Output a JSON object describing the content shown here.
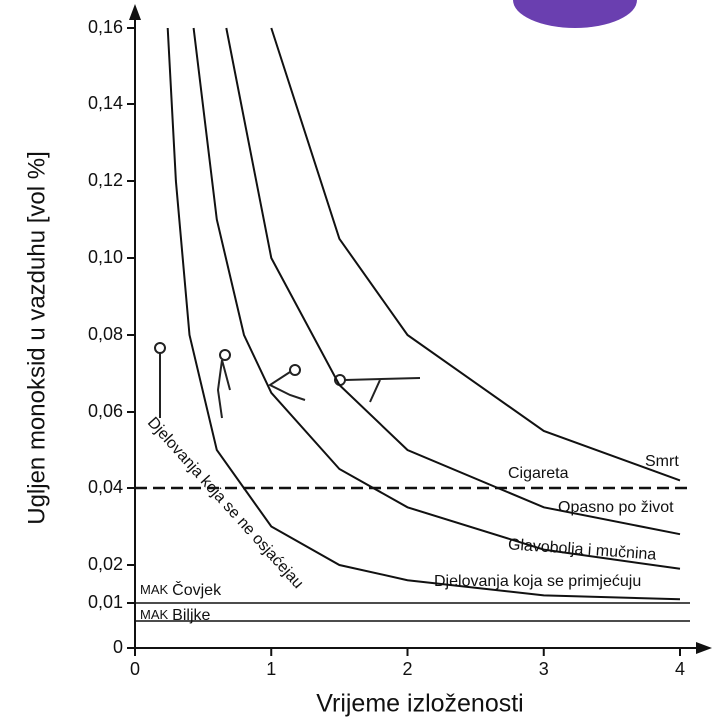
{
  "chart_data": {
    "type": "line",
    "x_label": "Vrijeme izloženosti",
    "y_label": "Ugljen monoksid u vazduhu [vol %]",
    "xlim": [
      0,
      4
    ],
    "xticks": [
      0,
      1,
      2,
      3,
      4
    ],
    "ylim": [
      0,
      0.16
    ],
    "yticks": [
      0,
      {
        "value": 0.01,
        "label": "0,01"
      },
      {
        "value": 0.02,
        "label": "0,02"
      },
      {
        "value": 0.04,
        "label": "0,04"
      },
      {
        "value": 0.06,
        "label": "0,06"
      },
      {
        "value": 0.08,
        "label": "0,08"
      },
      {
        "value": 0.1,
        "label": "0,10"
      },
      {
        "value": 0.12,
        "label": "0,12"
      },
      {
        "value": 0.14,
        "label": "0,14"
      },
      {
        "value": 0.16,
        "label": "0,16"
      }
    ],
    "color": "#111",
    "series": [
      {
        "name": "Djelovanja koja se primjećuju",
        "x": [
          0.24,
          0.3,
          0.4,
          0.6,
          1.0,
          1.5,
          2,
          3,
          4
        ],
        "values": [
          0.16,
          0.12,
          0.08,
          0.05,
          0.03,
          0.02,
          0.016,
          0.012,
          0.011
        ]
      },
      {
        "name": "Glavobolja i mučnina",
        "x": [
          0.43,
          0.6,
          0.8,
          1.0,
          1.5,
          2,
          3,
          4
        ],
        "values": [
          0.16,
          0.11,
          0.08,
          0.065,
          0.045,
          0.035,
          0.024,
          0.019
        ]
      },
      {
        "name": "Opasno po život",
        "x": [
          0.67,
          1,
          1.5,
          2,
          3,
          4
        ],
        "values": [
          0.16,
          0.1,
          0.067,
          0.05,
          0.035,
          0.028
        ]
      },
      {
        "name": "Smrt",
        "x": [
          1,
          1.5,
          2,
          3,
          4
        ],
        "values": [
          0.16,
          0.105,
          0.08,
          0.055,
          0.042
        ]
      }
    ],
    "reference_lines": [
      {
        "name": "Cigareta",
        "value": 0.04,
        "dashed": true
      },
      {
        "prefix": "MAK",
        "name": "Čovjek",
        "value": 0.01,
        "dashed": false
      },
      {
        "prefix": "MAK",
        "name": "Biljke",
        "value": 0.006,
        "dashed": false
      }
    ],
    "annotation": "Djelovanja koja se ne osjaćejau"
  }
}
